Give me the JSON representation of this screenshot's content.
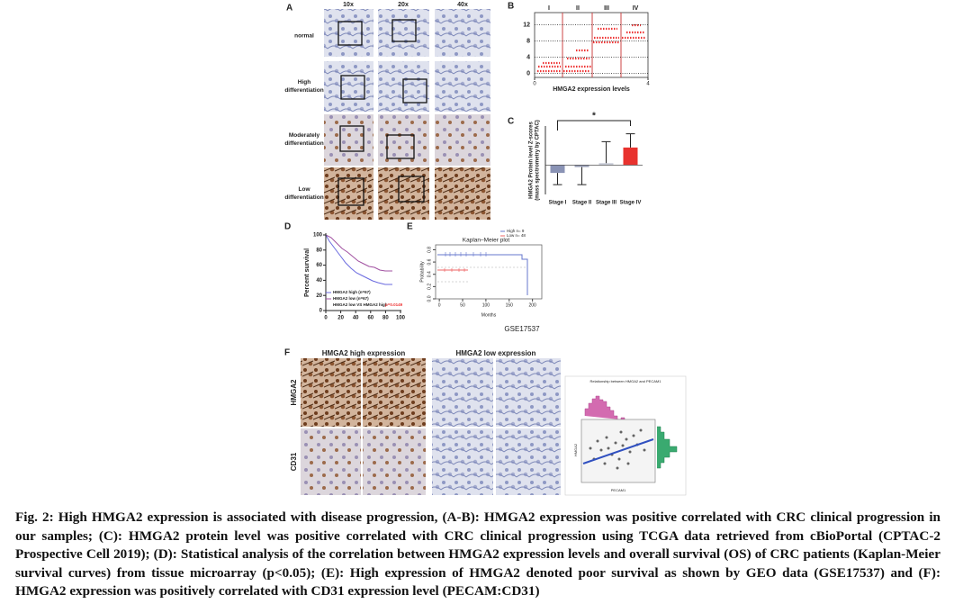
{
  "panelA": {
    "label": "A",
    "columns": [
      "10x",
      "20x",
      "40x"
    ],
    "rows": [
      [
        "normal"
      ],
      [
        "High",
        "differentiation"
      ],
      [
        "Moderately",
        "differentiation"
      ],
      [
        "Low",
        "differentiation"
      ]
    ]
  },
  "panelB": {
    "label": "B",
    "stages": [
      "I",
      "II",
      "III",
      "IV"
    ],
    "yticks": [
      0,
      4,
      8,
      12
    ],
    "ylim": [
      -1,
      15
    ],
    "xticks": [
      0,
      4
    ],
    "xlim": [
      0,
      4
    ],
    "xlabel": "HMGA2 expression levels"
  },
  "panelC": {
    "label": "C",
    "categories": [
      "Stage I",
      "Stage II",
      "Stage III",
      "Stage IV"
    ],
    "values": [
      -0.4,
      -0.1,
      0.1,
      0.9
    ],
    "errors": [
      0.6,
      0.9,
      1.1,
      0.7
    ],
    "colors": [
      "#8a93b5",
      "#9aa0b8",
      "#c9ccd8",
      "#e8322e"
    ],
    "ylim": [
      -1.5,
      2
    ],
    "ylabel": [
      "HMGA2 Protein level Z-scores",
      "(mass spectrometry by CPTAC)"
    ],
    "significance": "*"
  },
  "panelD": {
    "label": "D",
    "ylabel": "Percent survival",
    "xlim": [
      0,
      100
    ],
    "ylim": [
      0,
      100
    ],
    "xticks": [
      0,
      20,
      40,
      60,
      80,
      100
    ],
    "yticks": [
      0,
      20,
      40,
      60,
      80,
      100
    ],
    "legend": [
      "HMGA2 high (n=67)",
      "HMGA2 low (n=67)",
      "HMGA2 low VS HMGA2 high"
    ],
    "pvalue": "p=0.0149"
  },
  "panelE": {
    "label": "E",
    "title": "Kaplan–Meier plot",
    "legend": [
      "High  n= 9",
      "Low  n= 48"
    ],
    "xlim": [
      -8,
      220
    ],
    "ylim": [
      0,
      0.88
    ],
    "xticks": [
      0,
      50,
      100,
      150,
      200
    ],
    "yticks": [
      {
        "value": 0,
        "label": "0.0"
      },
      0.2,
      0.4,
      0.6,
      0.8
    ],
    "xlabel": "Months",
    "ylabel": "Probability",
    "dataset": "GSE17537"
  },
  "panelF": {
    "label": "F",
    "headers": [
      "HMGA2 high expression",
      "HMGA2 low expression"
    ],
    "rows": [
      "HMGA2",
      "CD31"
    ],
    "scatter_title": "Relationship between HMGA2 and PECAM1",
    "xlabel": "PECAM1",
    "ylabel": "HMGA2"
  },
  "caption": "Fig. 2: High HMGA2 expression is associated with disease progression, (A-B): HMGA2 expression was positive correlated with CRC clinical progression in our samples; (C): HMGA2 protein level was positive correlated with CRC clinical progression using TCGA data retrieved from cBioPortal (CPTAC-2 Prospective Cell 2019); (D): Statistical analysis of the correlation between HMGA2 expression levels and overall survival (OS) of CRC patients (Kaplan-Meier survival curves) from tissue microarray (p<0.05); (E): High expression of HMGA2 denoted poor survival as shown by GEO data (GSE17537) and (F): HMGA2 expression was positively correlated with CD31 expression level (PECAM:CD31)"
}
